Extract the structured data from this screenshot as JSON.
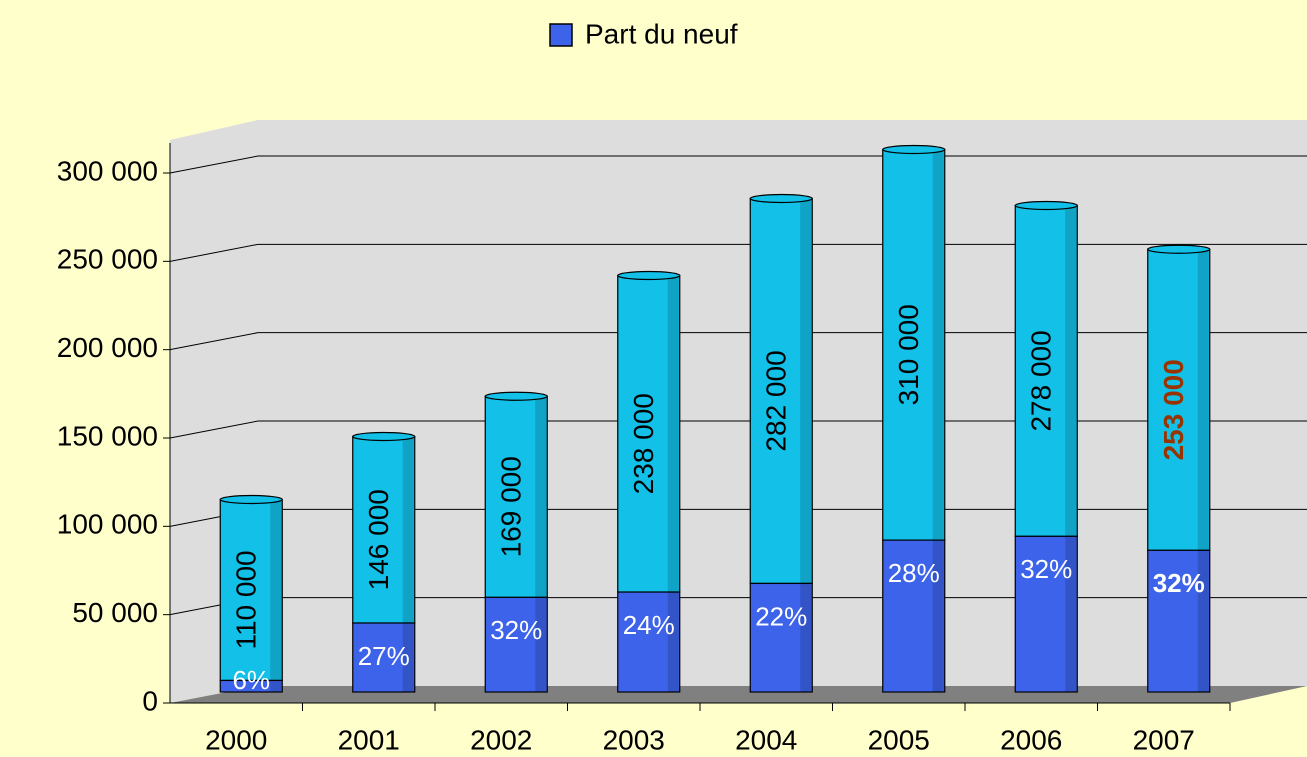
{
  "chart_data": {
    "type": "bar3d_share",
    "legend": "Part du neuf",
    "categories": [
      "2000",
      "2001",
      "2002",
      "2003",
      "2004",
      "2005",
      "2006",
      "2007"
    ],
    "totals": [
      110000,
      146000,
      169000,
      238000,
      282000,
      310000,
      278000,
      253000
    ],
    "total_labels": [
      "110 000",
      "146 000",
      "169 000",
      "238 000",
      "282 000",
      "310 000",
      "278 000",
      "253 000"
    ],
    "total_color": "#13c0e8",
    "series": [
      {
        "name": "Part du neuf",
        "color": "#3d63ea",
        "values": [
          6,
          27,
          32,
          24,
          22,
          28,
          32,
          32
        ],
        "value_labels": [
          "6%",
          "27%",
          "32%",
          "24%",
          "22%",
          "28%",
          "32%",
          "32%"
        ]
      }
    ],
    "highlight": "2007",
    "highlight_color": "#993300",
    "ylim": [
      0,
      300000
    ],
    "yticks": [
      0,
      {
        "value": 50000,
        "label": "50 000"
      },
      {
        "value": 100000,
        "label": "100 000"
      },
      {
        "value": 150000,
        "label": "150 000"
      },
      {
        "value": 200000,
        "label": "200 000"
      },
      {
        "value": 250000,
        "label": "250 000"
      },
      {
        "value": 300000,
        "label": "300 000"
      }
    ],
    "grid": true
  }
}
